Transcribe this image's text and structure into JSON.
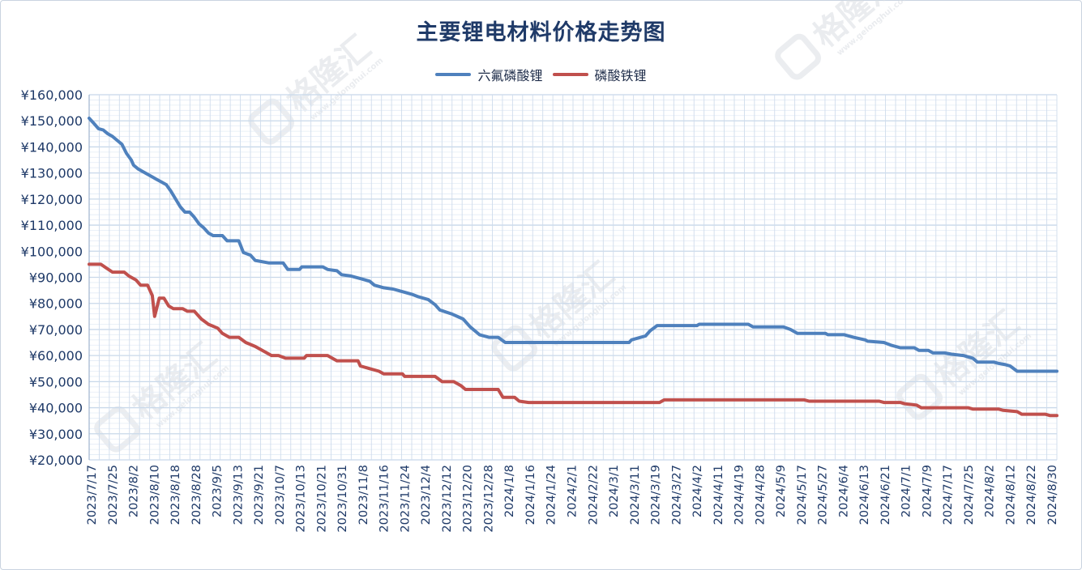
{
  "chart_data": {
    "type": "line",
    "title": "主要锂电材料价格走势图",
    "xlabel": "",
    "ylabel": "",
    "ylim": [
      20000,
      160000
    ],
    "ytick_values": [
      20000,
      30000,
      40000,
      50000,
      60000,
      70000,
      80000,
      90000,
      100000,
      110000,
      120000,
      130000,
      140000,
      150000,
      160000
    ],
    "ytick_labels": [
      "¥20,000",
      "¥30,000",
      "¥40,000",
      "¥50,000",
      "¥60,000",
      "¥70,000",
      "¥80,000",
      "¥90,000",
      "¥100,000",
      "¥110,000",
      "¥120,000",
      "¥130,000",
      "¥140,000",
      "¥150,000",
      "¥160,000"
    ],
    "x_range": [
      "2023-07-17",
      "2024-09-03"
    ],
    "xtick_labels": [
      "2023/7/17",
      "2023/7/25",
      "2023/8/2",
      "2023/8/10",
      "2023/8/18",
      "2023/8/28",
      "2023/9/5",
      "2023/9/13",
      "2023/9/21",
      "2023/10/7",
      "2023/10/13",
      "2023/10/21",
      "2023/10/31",
      "2023/11/8",
      "2023/11/16",
      "2023/11/24",
      "2023/12/4",
      "2023/12/12",
      "2023/12/20",
      "2023/12/28",
      "2024/1/8",
      "2024/1/16",
      "2024/1/24",
      "2024/2/1",
      "2024/2/22",
      "2024/3/1",
      "2024/3/11",
      "2024/3/19",
      "2024/3/27",
      "2024/4/2",
      "2024/4/11",
      "2024/4/19",
      "2024/4/28",
      "2024/5/9",
      "2024/5/17",
      "2024/5/27",
      "2024/6/4",
      "2024/6/13",
      "2024/6/21",
      "2024/7/1",
      "2024/7/9",
      "2024/7/17",
      "2024/7/25",
      "2024/8/2",
      "2024/8/12",
      "2024/8/22",
      "2024/8/30"
    ],
    "grid": true,
    "legend_position": "top-center",
    "series": [
      {
        "name": "六氟磷酸锂",
        "color": "#4f81bd",
        "points": [
          [
            "2023-07-17",
            151000
          ],
          [
            "2023-07-19",
            149000
          ],
          [
            "2023-07-21",
            147000
          ],
          [
            "2023-07-23",
            146500
          ],
          [
            "2023-07-25",
            145000
          ],
          [
            "2023-07-27",
            144000
          ],
          [
            "2023-07-29",
            142500
          ],
          [
            "2023-07-31",
            141000
          ],
          [
            "2023-08-02",
            137500
          ],
          [
            "2023-08-04",
            135000
          ],
          [
            "2023-08-05",
            133000
          ],
          [
            "2023-08-07",
            131500
          ],
          [
            "2023-08-09",
            130500
          ],
          [
            "2023-08-11",
            129500
          ],
          [
            "2023-08-13",
            128500
          ],
          [
            "2023-08-15",
            127500
          ],
          [
            "2023-08-17",
            126500
          ],
          [
            "2023-08-19",
            125500
          ],
          [
            "2023-08-21",
            123000
          ],
          [
            "2023-08-23",
            120000
          ],
          [
            "2023-08-25",
            117000
          ],
          [
            "2023-08-27",
            115000
          ],
          [
            "2023-08-29",
            115000
          ],
          [
            "2023-08-31",
            113000
          ],
          [
            "2023-09-02",
            110500
          ],
          [
            "2023-09-04",
            109000
          ],
          [
            "2023-09-06",
            107000
          ],
          [
            "2023-09-08",
            106000
          ],
          [
            "2023-09-12",
            106000
          ],
          [
            "2023-09-14",
            104000
          ],
          [
            "2023-09-19",
            104000
          ],
          [
            "2023-09-21",
            99500
          ],
          [
            "2023-09-24",
            98500
          ],
          [
            "2023-09-26",
            96500
          ],
          [
            "2023-10-02",
            95500
          ],
          [
            "2023-10-08",
            95500
          ],
          [
            "2023-10-10",
            93000
          ],
          [
            "2023-10-15",
            93000
          ],
          [
            "2023-10-16",
            94000
          ],
          [
            "2023-10-25",
            94000
          ],
          [
            "2023-10-27",
            93000
          ],
          [
            "2023-10-31",
            92500
          ],
          [
            "2023-11-02",
            91000
          ],
          [
            "2023-11-06",
            90500
          ],
          [
            "2023-11-10",
            89500
          ],
          [
            "2023-11-14",
            88500
          ],
          [
            "2023-11-16",
            87000
          ],
          [
            "2023-11-20",
            86000
          ],
          [
            "2023-11-24",
            85500
          ],
          [
            "2023-11-28",
            84500
          ],
          [
            "2023-12-02",
            83500
          ],
          [
            "2023-12-05",
            82500
          ],
          [
            "2023-12-09",
            81500
          ],
          [
            "2023-12-12",
            79500
          ],
          [
            "2023-12-14",
            77500
          ],
          [
            "2023-12-19",
            76000
          ],
          [
            "2023-12-24",
            74000
          ],
          [
            "2023-12-27",
            71000
          ],
          [
            "2023-12-31",
            68000
          ],
          [
            "2024-01-04",
            67000
          ],
          [
            "2024-01-08",
            67000
          ],
          [
            "2024-01-11",
            65000
          ],
          [
            "2024-03-04",
            65000
          ],
          [
            "2024-03-05",
            66000
          ],
          [
            "2024-03-09",
            67000
          ],
          [
            "2024-03-11",
            67500
          ],
          [
            "2024-03-13",
            69500
          ],
          [
            "2024-03-16",
            71500
          ],
          [
            "2024-04-02",
            71500
          ],
          [
            "2024-04-03",
            72000
          ],
          [
            "2024-04-24",
            72000
          ],
          [
            "2024-04-26",
            71000
          ],
          [
            "2024-05-09",
            71000
          ],
          [
            "2024-05-12",
            70000
          ],
          [
            "2024-05-15",
            68500
          ],
          [
            "2024-05-27",
            68500
          ],
          [
            "2024-05-28",
            68000
          ],
          [
            "2024-06-04",
            68000
          ],
          [
            "2024-06-08",
            67000
          ],
          [
            "2024-06-13",
            66000
          ],
          [
            "2024-06-14",
            65500
          ],
          [
            "2024-06-21",
            65000
          ],
          [
            "2024-06-24",
            64000
          ],
          [
            "2024-06-28",
            63000
          ],
          [
            "2024-07-04",
            63000
          ],
          [
            "2024-07-06",
            62000
          ],
          [
            "2024-07-10",
            62000
          ],
          [
            "2024-07-12",
            61000
          ],
          [
            "2024-07-17",
            61000
          ],
          [
            "2024-07-20",
            60500
          ],
          [
            "2024-07-25",
            60000
          ],
          [
            "2024-07-29",
            59000
          ],
          [
            "2024-07-31",
            57500
          ],
          [
            "2024-08-07",
            57500
          ],
          [
            "2024-08-09",
            57000
          ],
          [
            "2024-08-12",
            56500
          ],
          [
            "2024-08-14",
            56000
          ],
          [
            "2024-08-17",
            54000
          ],
          [
            "2024-09-03",
            54000
          ]
        ]
      },
      {
        "name": "磷酸铁锂",
        "color": "#c0504d",
        "points": [
          [
            "2023-07-17",
            95000
          ],
          [
            "2023-07-22",
            95000
          ],
          [
            "2023-07-27",
            92000
          ],
          [
            "2023-08-01",
            92000
          ],
          [
            "2023-08-03",
            90500
          ],
          [
            "2023-08-06",
            89000
          ],
          [
            "2023-08-08",
            87000
          ],
          [
            "2023-08-11",
            87000
          ],
          [
            "2023-08-13",
            83000
          ],
          [
            "2023-08-14",
            75000
          ],
          [
            "2023-08-16",
            82000
          ],
          [
            "2023-08-18",
            82000
          ],
          [
            "2023-08-20",
            79000
          ],
          [
            "2023-08-22",
            78000
          ],
          [
            "2023-08-26",
            78000
          ],
          [
            "2023-08-28",
            77000
          ],
          [
            "2023-08-31",
            77000
          ],
          [
            "2023-09-03",
            74000
          ],
          [
            "2023-09-06",
            72000
          ],
          [
            "2023-09-10",
            70500
          ],
          [
            "2023-09-12",
            68500
          ],
          [
            "2023-09-15",
            67000
          ],
          [
            "2023-09-19",
            67000
          ],
          [
            "2023-09-22",
            65000
          ],
          [
            "2023-09-26",
            63500
          ],
          [
            "2023-09-30",
            61500
          ],
          [
            "2023-10-03",
            60000
          ],
          [
            "2023-10-06",
            60000
          ],
          [
            "2023-10-09",
            59000
          ],
          [
            "2023-10-17",
            59000
          ],
          [
            "2023-10-18",
            60000
          ],
          [
            "2023-10-27",
            60000
          ],
          [
            "2023-10-29",
            59000
          ],
          [
            "2023-10-31",
            58000
          ],
          [
            "2023-11-09",
            58000
          ],
          [
            "2023-11-10",
            56000
          ],
          [
            "2023-11-14",
            55000
          ],
          [
            "2023-11-18",
            54000
          ],
          [
            "2023-11-20",
            53000
          ],
          [
            "2023-11-28",
            53000
          ],
          [
            "2023-11-29",
            52000
          ],
          [
            "2023-12-12",
            52000
          ],
          [
            "2023-12-15",
            50000
          ],
          [
            "2023-12-20",
            50000
          ],
          [
            "2023-12-23",
            48500
          ],
          [
            "2023-12-25",
            47000
          ],
          [
            "2024-01-08",
            47000
          ],
          [
            "2024-01-10",
            44000
          ],
          [
            "2024-01-15",
            44000
          ],
          [
            "2024-01-17",
            42500
          ],
          [
            "2024-01-21",
            42000
          ],
          [
            "2024-03-17",
            42000
          ],
          [
            "2024-03-19",
            43000
          ],
          [
            "2024-05-18",
            43000
          ],
          [
            "2024-05-20",
            42500
          ],
          [
            "2024-06-19",
            42500
          ],
          [
            "2024-06-21",
            42000
          ],
          [
            "2024-06-28",
            42000
          ],
          [
            "2024-06-30",
            41500
          ],
          [
            "2024-07-05",
            41000
          ],
          [
            "2024-07-07",
            40000
          ],
          [
            "2024-07-27",
            40000
          ],
          [
            "2024-07-29",
            39500
          ],
          [
            "2024-08-09",
            39500
          ],
          [
            "2024-08-11",
            39000
          ],
          [
            "2024-08-17",
            38500
          ],
          [
            "2024-08-19",
            37500
          ],
          [
            "2024-08-29",
            37500
          ],
          [
            "2024-08-31",
            37000
          ],
          [
            "2024-09-03",
            37000
          ]
        ]
      }
    ]
  },
  "watermark": {
    "text": "格隆汇",
    "url": "www.gelonghui.com"
  }
}
